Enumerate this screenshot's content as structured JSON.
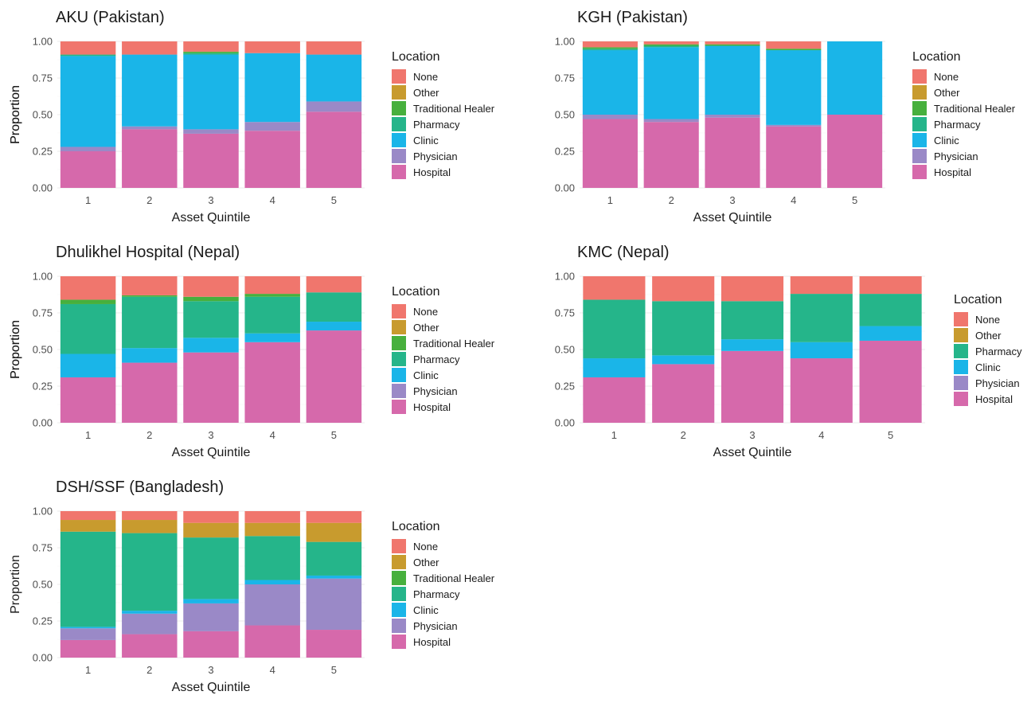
{
  "colors": {
    "None": "#F0766D",
    "Other": "#C89B2E",
    "Traditional Healer": "#47B03D",
    "Pharmacy": "#25B58A",
    "Clinic": "#1AB5E8",
    "Physician": "#9A89C7",
    "Hospital": "#D669AB"
  },
  "chart_data": [
    {
      "type": "bar",
      "stacked": true,
      "title": "AKU (Pakistan)",
      "xlabel": "Asset Quintile",
      "ylabel": "Proportion",
      "ylim": [
        0,
        1
      ],
      "yticks": [
        "0.00",
        "0.25",
        "0.50",
        "0.75",
        "1.00"
      ],
      "categories": [
        "1",
        "2",
        "3",
        "4",
        "5"
      ],
      "legend_title": "Location",
      "legend": [
        "None",
        "Other",
        "Traditional Healer",
        "Pharmacy",
        "Clinic",
        "Physician",
        "Hospital"
      ],
      "series": [
        {
          "name": "Hospital",
          "values": [
            0.25,
            0.4,
            0.37,
            0.39,
            0.52
          ]
        },
        {
          "name": "Physician",
          "values": [
            0.03,
            0.02,
            0.03,
            0.06,
            0.07
          ]
        },
        {
          "name": "Clinic",
          "values": [
            0.62,
            0.49,
            0.51,
            0.47,
            0.32
          ]
        },
        {
          "name": "Pharmacy",
          "values": [
            0.01,
            0.0,
            0.01,
            0.0,
            0.0
          ]
        },
        {
          "name": "Traditional Healer",
          "values": [
            0.0,
            0.0,
            0.01,
            0.0,
            0.0
          ]
        },
        {
          "name": "Other",
          "values": [
            0.0,
            0.0,
            0.0,
            0.0,
            0.0
          ]
        },
        {
          "name": "None",
          "values": [
            0.09,
            0.09,
            0.07,
            0.08,
            0.09
          ]
        }
      ]
    },
    {
      "type": "bar",
      "stacked": true,
      "title": "KGH (Pakistan)",
      "xlabel": "Asset Quintile",
      "ylabel": "Proportion",
      "ylim": [
        0,
        1
      ],
      "yticks": [
        "0.00",
        "0.25",
        "0.50",
        "0.75",
        "1.00"
      ],
      "categories": [
        "1",
        "2",
        "3",
        "4",
        "5"
      ],
      "legend_title": "Location",
      "legend": [
        "None",
        "Other",
        "Traditional Healer",
        "Pharmacy",
        "Clinic",
        "Physician",
        "Hospital"
      ],
      "series": [
        {
          "name": "Hospital",
          "values": [
            0.47,
            0.45,
            0.48,
            0.42,
            0.5
          ]
        },
        {
          "name": "Physician",
          "values": [
            0.03,
            0.02,
            0.02,
            0.01,
            0.0
          ]
        },
        {
          "name": "Clinic",
          "values": [
            0.44,
            0.49,
            0.47,
            0.51,
            0.5
          ]
        },
        {
          "name": "Pharmacy",
          "values": [
            0.01,
            0.01,
            0.0,
            0.0,
            0.0
          ]
        },
        {
          "name": "Traditional Healer",
          "values": [
            0.01,
            0.01,
            0.01,
            0.01,
            0.0
          ]
        },
        {
          "name": "Other",
          "values": [
            0.0,
            0.0,
            0.0,
            0.0,
            0.0
          ]
        },
        {
          "name": "None",
          "values": [
            0.04,
            0.02,
            0.02,
            0.05,
            0.0
          ]
        }
      ]
    },
    {
      "type": "bar",
      "stacked": true,
      "title": "Dhulikhel Hospital (Nepal)",
      "xlabel": "Asset Quintile",
      "ylabel": "Proportion",
      "ylim": [
        0,
        1
      ],
      "yticks": [
        "0.00",
        "0.25",
        "0.50",
        "0.75",
        "1.00"
      ],
      "categories": [
        "1",
        "2",
        "3",
        "4",
        "5"
      ],
      "legend_title": "Location",
      "legend": [
        "None",
        "Other",
        "Traditional Healer",
        "Pharmacy",
        "Clinic",
        "Physician",
        "Hospital"
      ],
      "series": [
        {
          "name": "Hospital",
          "values": [
            0.31,
            0.41,
            0.48,
            0.55,
            0.63
          ]
        },
        {
          "name": "Physician",
          "values": [
            0.0,
            0.0,
            0.0,
            0.0,
            0.0
          ]
        },
        {
          "name": "Clinic",
          "values": [
            0.16,
            0.1,
            0.1,
            0.06,
            0.06
          ]
        },
        {
          "name": "Pharmacy",
          "values": [
            0.34,
            0.35,
            0.25,
            0.25,
            0.2
          ]
        },
        {
          "name": "Traditional Healer",
          "values": [
            0.03,
            0.01,
            0.03,
            0.02,
            0.0
          ]
        },
        {
          "name": "Other",
          "values": [
            0.0,
            0.0,
            0.0,
            0.0,
            0.0
          ]
        },
        {
          "name": "None",
          "values": [
            0.16,
            0.13,
            0.14,
            0.12,
            0.11
          ]
        }
      ]
    },
    {
      "type": "bar",
      "stacked": true,
      "title": "KMC (Nepal)",
      "xlabel": "Asset Quintile",
      "ylabel": "Proportion",
      "ylim": [
        0,
        1
      ],
      "yticks": [
        "0.00",
        "0.25",
        "0.50",
        "0.75",
        "1.00"
      ],
      "categories": [
        "1",
        "2",
        "3",
        "4",
        "5"
      ],
      "legend_title": "Location",
      "legend": [
        "None",
        "Other",
        "Pharmacy",
        "Clinic",
        "Physician",
        "Hospital"
      ],
      "series": [
        {
          "name": "Hospital",
          "values": [
            0.31,
            0.4,
            0.49,
            0.44,
            0.56
          ]
        },
        {
          "name": "Physician",
          "values": [
            0.0,
            0.0,
            0.0,
            0.0,
            0.0
          ]
        },
        {
          "name": "Clinic",
          "values": [
            0.13,
            0.06,
            0.08,
            0.11,
            0.1
          ]
        },
        {
          "name": "Pharmacy",
          "values": [
            0.4,
            0.37,
            0.26,
            0.33,
            0.22
          ]
        },
        {
          "name": "Other",
          "values": [
            0.0,
            0.0,
            0.0,
            0.0,
            0.0
          ]
        },
        {
          "name": "None",
          "values": [
            0.16,
            0.17,
            0.17,
            0.12,
            0.12
          ]
        }
      ]
    },
    {
      "type": "bar",
      "stacked": true,
      "title": "DSH/SSF (Bangladesh)",
      "xlabel": "Asset Quintile",
      "ylabel": "Proportion",
      "ylim": [
        0,
        1
      ],
      "yticks": [
        "0.00",
        "0.25",
        "0.50",
        "0.75",
        "1.00"
      ],
      "categories": [
        "1",
        "2",
        "3",
        "4",
        "5"
      ],
      "legend_title": "Location",
      "legend": [
        "None",
        "Other",
        "Traditional Healer",
        "Pharmacy",
        "Clinic",
        "Physician",
        "Hospital"
      ],
      "series": [
        {
          "name": "Hospital",
          "values": [
            0.12,
            0.16,
            0.18,
            0.22,
            0.19
          ]
        },
        {
          "name": "Physician",
          "values": [
            0.08,
            0.14,
            0.19,
            0.28,
            0.35
          ]
        },
        {
          "name": "Clinic",
          "values": [
            0.01,
            0.02,
            0.03,
            0.03,
            0.02
          ]
        },
        {
          "name": "Pharmacy",
          "values": [
            0.65,
            0.53,
            0.42,
            0.3,
            0.23
          ]
        },
        {
          "name": "Traditional Healer",
          "values": [
            0.0,
            0.0,
            0.0,
            0.0,
            0.0
          ]
        },
        {
          "name": "Other",
          "values": [
            0.08,
            0.09,
            0.1,
            0.09,
            0.13
          ]
        },
        {
          "name": "None",
          "values": [
            0.06,
            0.06,
            0.08,
            0.08,
            0.08
          ]
        }
      ]
    }
  ]
}
